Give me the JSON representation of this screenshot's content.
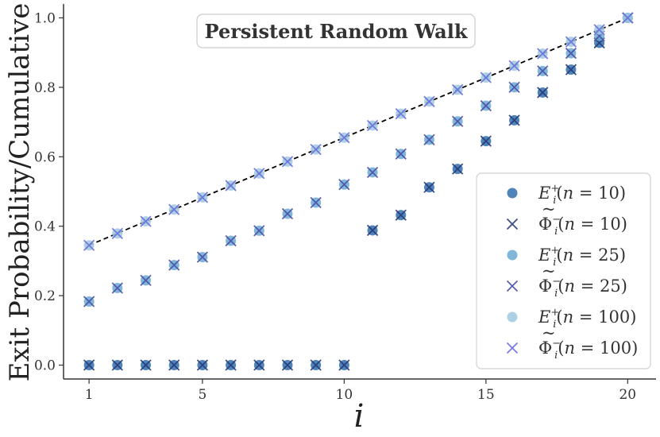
{
  "chart_data": {
    "type": "scatter",
    "title": "Persistent Random Walk",
    "xlabel": "i",
    "ylabel": "Exit Probability/Cumulative",
    "xlim": [
      0.1,
      21.0
    ],
    "ylim": [
      -0.04,
      1.04
    ],
    "xticks": [
      1,
      5,
      10,
      15,
      20
    ],
    "yticks": [
      0.0,
      0.2,
      0.4,
      0.6,
      0.8,
      1.0
    ],
    "grid": false,
    "legend_position": "lower-right",
    "reference_line": {
      "x": [
        1,
        20
      ],
      "y": [
        0.345,
        1.0
      ],
      "style": "dashed",
      "color": "#000000"
    },
    "series": [
      {
        "name": "E_i^+(n=10)",
        "marker": "circle",
        "color": "#2f6faa",
        "x": [
          1,
          2,
          3,
          4,
          5,
          6,
          7,
          8,
          9,
          10,
          11,
          12,
          13,
          14,
          15,
          16,
          17,
          18,
          19,
          20
        ],
        "values": [
          0.0,
          0.0,
          0.0,
          0.0,
          0.0,
          0.0,
          0.0,
          0.0,
          0.0,
          0.0,
          0.388,
          0.432,
          0.512,
          0.565,
          0.645,
          0.705,
          0.785,
          0.851,
          0.928,
          1.0
        ]
      },
      {
        "name": "Φ̃_i^-(n=10)",
        "marker": "x",
        "color": "#283a7a",
        "x": [
          1,
          2,
          3,
          4,
          5,
          6,
          7,
          8,
          9,
          10,
          11,
          12,
          13,
          14,
          15,
          16,
          17,
          18,
          19,
          20
        ],
        "values": [
          0.0,
          0.0,
          0.0,
          0.0,
          0.0,
          0.0,
          0.0,
          0.0,
          0.0,
          0.0,
          0.388,
          0.432,
          0.512,
          0.565,
          0.645,
          0.705,
          0.785,
          0.851,
          0.928,
          1.0
        ]
      },
      {
        "name": "E_i^+(n=25)",
        "marker": "circle",
        "color": "#6aaad2",
        "x": [
          1,
          2,
          3,
          4,
          5,
          6,
          7,
          8,
          9,
          10,
          11,
          12,
          13,
          14,
          15,
          16,
          17,
          18,
          19,
          20
        ],
        "values": [
          0.183,
          0.222,
          0.244,
          0.288,
          0.311,
          0.358,
          0.387,
          0.436,
          0.468,
          0.52,
          0.555,
          0.608,
          0.649,
          0.702,
          0.747,
          0.8,
          0.847,
          0.898,
          0.948,
          1.0
        ]
      },
      {
        "name": "Φ̃_i^-(n=25)",
        "marker": "x",
        "color": "#4a4fa8",
        "x": [
          1,
          2,
          3,
          4,
          5,
          6,
          7,
          8,
          9,
          10,
          11,
          12,
          13,
          14,
          15,
          16,
          17,
          18,
          19,
          20
        ],
        "values": [
          0.183,
          0.222,
          0.244,
          0.288,
          0.311,
          0.358,
          0.387,
          0.436,
          0.468,
          0.52,
          0.555,
          0.608,
          0.649,
          0.702,
          0.747,
          0.8,
          0.847,
          0.898,
          0.948,
          1.0
        ]
      },
      {
        "name": "E_i^+(n=100)",
        "marker": "circle",
        "color": "#9fc8e0",
        "x": [
          1,
          2,
          3,
          4,
          5,
          6,
          7,
          8,
          9,
          10,
          11,
          12,
          13,
          14,
          15,
          16,
          17,
          18,
          19,
          20
        ],
        "values": [
          0.345,
          0.379,
          0.414,
          0.448,
          0.483,
          0.517,
          0.552,
          0.586,
          0.621,
          0.655,
          0.69,
          0.724,
          0.759,
          0.793,
          0.828,
          0.862,
          0.897,
          0.931,
          0.966,
          1.0
        ]
      },
      {
        "name": "Φ̃_i^-(n=100)",
        "marker": "x",
        "color": "#6a6fdc",
        "x": [
          1,
          2,
          3,
          4,
          5,
          6,
          7,
          8,
          9,
          10,
          11,
          12,
          13,
          14,
          15,
          16,
          17,
          18,
          19,
          20
        ],
        "values": [
          0.345,
          0.379,
          0.414,
          0.448,
          0.483,
          0.517,
          0.552,
          0.586,
          0.621,
          0.655,
          0.69,
          0.724,
          0.759,
          0.793,
          0.828,
          0.862,
          0.897,
          0.931,
          0.966,
          1.0
        ]
      }
    ]
  }
}
